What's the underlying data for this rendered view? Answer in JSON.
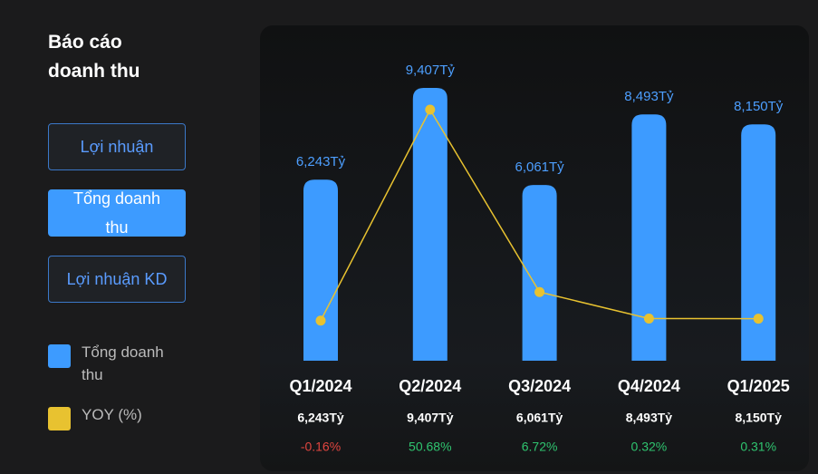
{
  "sidebar": {
    "title": "Báo cáo doanh thu",
    "tabs": [
      "Lợi nhuận",
      "Tổng doanh thu",
      "Lợi nhuận KD"
    ],
    "active_tab": 1
  },
  "chart_data": {
    "type": "bar",
    "categories": [
      "Q1/2024",
      "Q2/2024",
      "Q3/2024",
      "Q4/2024",
      "Q1/2025"
    ],
    "series": [
      {
        "name": "Tổng doanh thu",
        "type": "bar",
        "color": "#3d9bff",
        "values": [
          6243,
          9407,
          6061,
          8493,
          8150
        ],
        "value_labels": [
          "6,243Tỷ",
          "9,407Tỷ",
          "6,061Tỷ",
          "8,493Tỷ",
          "8,150Tỷ"
        ]
      },
      {
        "name": "YOY (%)",
        "type": "line",
        "axis": "y2",
        "color": "#e8c230",
        "values": [
          -0.16,
          50.68,
          6.72,
          0.32,
          0.31
        ],
        "value_labels": [
          "-0.16%",
          "50.68%",
          "6.72%",
          "0.32%",
          "0.31%"
        ]
      }
    ]
  }
}
